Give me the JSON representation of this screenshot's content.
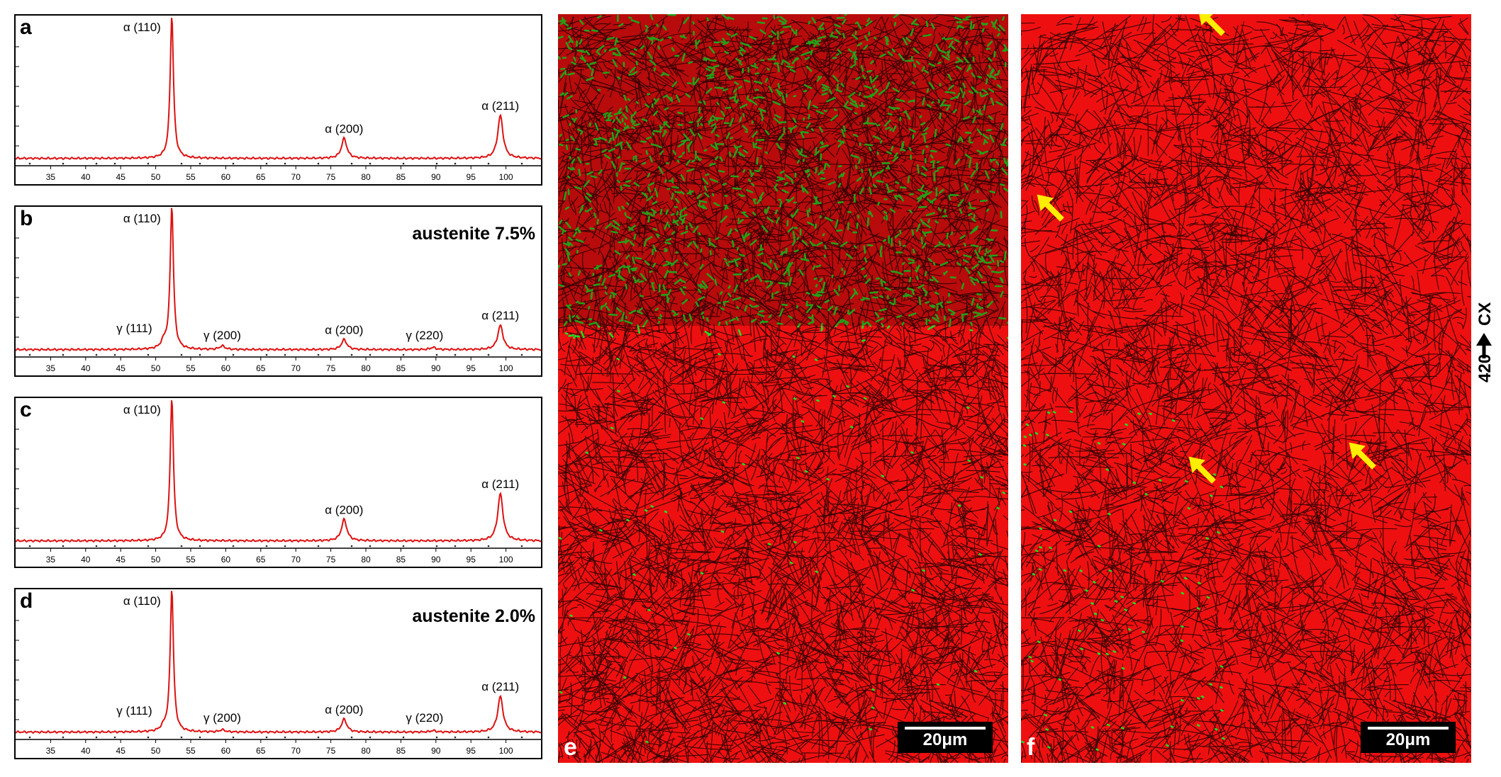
{
  "chart_data": [
    {
      "type": "line",
      "panel": "a",
      "xlim": [
        30,
        105
      ],
      "x_ticks": [
        35,
        40,
        45,
        50,
        55,
        60,
        65,
        70,
        75,
        80,
        85,
        90,
        95,
        100
      ],
      "peaks": [
        {
          "label": "α (110)",
          "x": 52.3,
          "height": 1.0
        },
        {
          "label": "α (200)",
          "x": 76.9,
          "height": 0.14
        },
        {
          "label": "α (211)",
          "x": 99.2,
          "height": 0.3
        }
      ],
      "annotation": ""
    },
    {
      "type": "line",
      "panel": "b",
      "xlim": [
        30,
        105
      ],
      "x_ticks": [
        35,
        40,
        45,
        50,
        55,
        60,
        65,
        70,
        75,
        80,
        85,
        90,
        95,
        100
      ],
      "peaks": [
        {
          "label": "γ (111)",
          "x": 51.2,
          "height": 0.05
        },
        {
          "label": "α (110)",
          "x": 52.3,
          "height": 1.0
        },
        {
          "label": "γ (200)",
          "x": 59.5,
          "height": 0.025
        },
        {
          "label": "α (200)",
          "x": 76.9,
          "height": 0.07
        },
        {
          "label": "γ (220)",
          "x": 89.6,
          "height": 0.015
        },
        {
          "label": "α (211)",
          "x": 99.2,
          "height": 0.17
        }
      ],
      "annotation": "austenite 7.5%"
    },
    {
      "type": "line",
      "panel": "c",
      "xlim": [
        30,
        105
      ],
      "x_ticks": [
        35,
        40,
        45,
        50,
        55,
        60,
        65,
        70,
        75,
        80,
        85,
        90,
        95,
        100
      ],
      "peaks": [
        {
          "label": "α (110)",
          "x": 52.3,
          "height": 1.0
        },
        {
          "label": "α (200)",
          "x": 76.9,
          "height": 0.15
        },
        {
          "label": "α (211)",
          "x": 99.2,
          "height": 0.33
        }
      ],
      "annotation": ""
    },
    {
      "type": "line",
      "panel": "d",
      "xlim": [
        30,
        105
      ],
      "x_ticks": [
        35,
        40,
        45,
        50,
        55,
        60,
        65,
        70,
        75,
        80,
        85,
        90,
        95,
        100
      ],
      "peaks": [
        {
          "label": "γ (111)",
          "x": 51.2,
          "height": 0.03
        },
        {
          "label": "α (110)",
          "x": 52.3,
          "height": 1.0
        },
        {
          "label": "γ (200)",
          "x": 59.5,
          "height": 0.015
        },
        {
          "label": "α (200)",
          "x": 76.9,
          "height": 0.09
        },
        {
          "label": "γ (220)",
          "x": 89.6,
          "height": 0.01
        },
        {
          "label": "α (211)",
          "x": 99.2,
          "height": 0.25
        }
      ],
      "annotation": "austenite 2.0%"
    }
  ],
  "maps": [
    {
      "label": "e",
      "scalebar": "20μm",
      "austenite_region": "top"
    },
    {
      "label": "f",
      "scalebar": "20μm",
      "austenite_region": "sparse"
    }
  ],
  "direction": {
    "number": "420",
    "text": "CX"
  },
  "colors": {
    "phase_bcc": "#ee1010",
    "phase_fcc": "#22dd22",
    "boundary": "#1a0000",
    "arrow": "#ffee00",
    "xrd_line": "#dd1111"
  }
}
